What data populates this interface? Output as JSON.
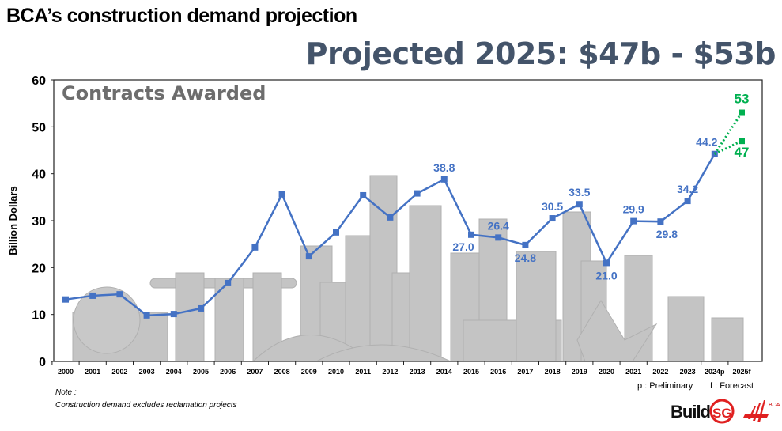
{
  "title": "BCA’s construction demand projection",
  "subtitle": "Projected 2025: $47b - $53b",
  "note": {
    "heading": "Note :",
    "text": "Construction demand excludes reclamation projects"
  },
  "legend": {
    "preliminary": "p : Preliminary",
    "forecast": "f : Forecast"
  },
  "logos": {
    "buildsg": "BuildSG",
    "bca": "BCA"
  },
  "colors": {
    "series": "#4472c4",
    "forecast": "#00b050",
    "skyline": "#bfbfbf",
    "subtitle": "#44546a"
  },
  "chart_data": {
    "type": "line",
    "title": "Contracts Awarded",
    "ylabel": "Billion Dollars",
    "xlabel": "",
    "ylim": [
      0,
      60
    ],
    "yticks": [
      0,
      10,
      20,
      30,
      40,
      50,
      60
    ],
    "grid": false,
    "categories": [
      "2000",
      "2001",
      "2002",
      "2003",
      "2004",
      "2005",
      "2006",
      "2007",
      "2008",
      "2009",
      "2010",
      "2011",
      "2012",
      "2013",
      "2014",
      "2015",
      "2016",
      "2017",
      "2018",
      "2019",
      "2020",
      "2021",
      "2022",
      "2023",
      "2024p",
      "2025f"
    ],
    "series": [
      {
        "values": [
          13.2,
          14.0,
          14.3,
          9.8,
          10.1,
          11.3,
          16.7,
          24.3,
          35.6,
          22.4,
          27.5,
          35.4,
          30.7,
          35.8,
          38.8,
          27.0,
          26.4,
          24.8,
          30.5,
          33.5,
          21.0,
          29.9,
          29.8,
          34.2,
          44.2,
          null
        ],
        "labels": {
          "2014": "38.8",
          "2015": "27.0",
          "2016": "26.4",
          "2017": "24.8",
          "2018": "30.5",
          "2019": "33.5",
          "2020": "21.0",
          "2021": "29.9",
          "2022": "29.8",
          "2023": "34.2",
          "2024p": "44.2"
        }
      },
      {
        "style": "dotted-forecast",
        "from": "2024p",
        "to": "2025f",
        "high": 53,
        "low": 47,
        "labels": {
          "high": "53",
          "low": "47"
        }
      }
    ]
  }
}
